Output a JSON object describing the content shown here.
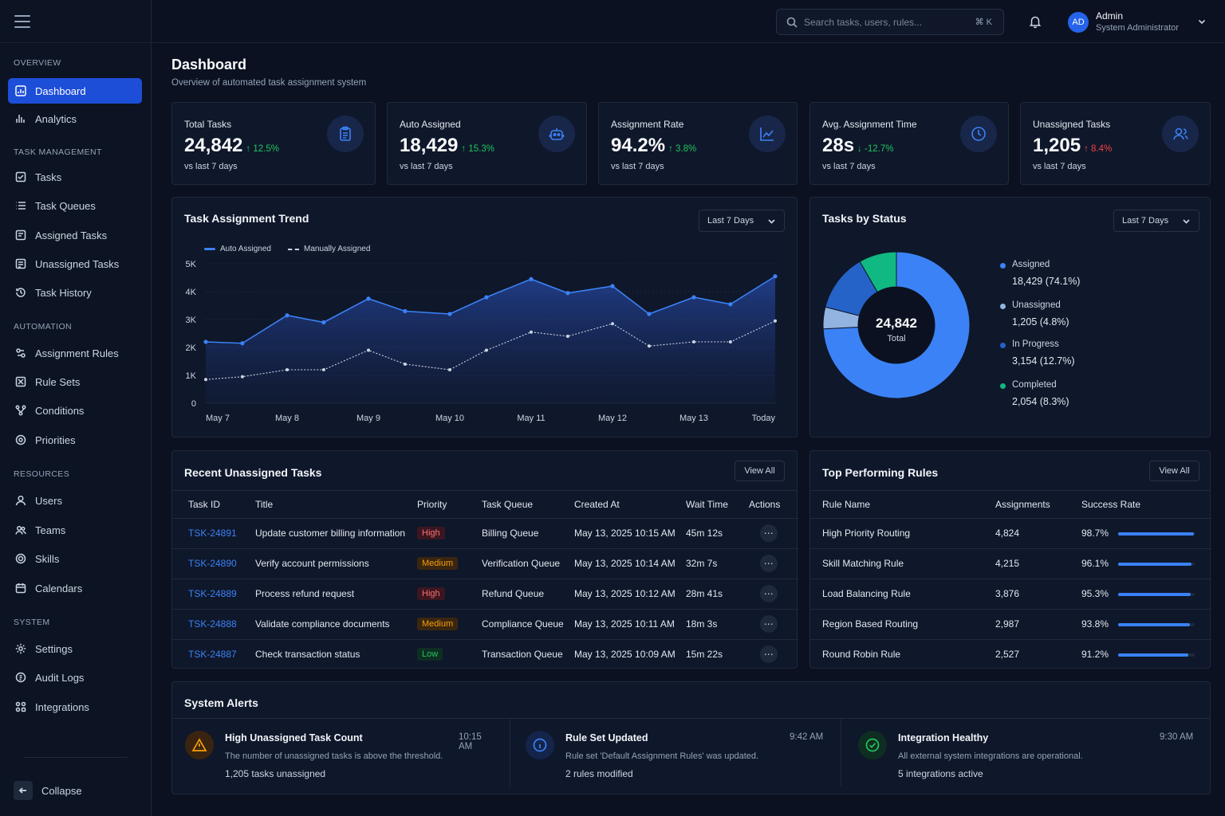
{
  "sidebar": {
    "sections": [
      "OVERVIEW",
      "TASK MANAGEMENT",
      "AUTOMATION",
      "RESOURCES",
      "SYSTEM"
    ],
    "items": [
      {
        "label": "Dashboard",
        "icon": "dashboard-icon"
      },
      {
        "label": "Analytics",
        "icon": "analytics-icon"
      },
      {
        "label": "Tasks",
        "icon": "tasks-icon"
      },
      {
        "label": "Task Queues",
        "icon": "queues-icon"
      },
      {
        "label": "Assigned Tasks",
        "icon": "assigned-icon"
      },
      {
        "label": "Unassigned Tasks",
        "icon": "unassigned-icon"
      },
      {
        "label": "Task History",
        "icon": "history-icon"
      },
      {
        "label": "Assignment Rules",
        "icon": "rules-icon"
      },
      {
        "label": "Rule Sets",
        "icon": "rulesets-icon"
      },
      {
        "label": "Conditions",
        "icon": "conditions-icon"
      },
      {
        "label": "Priorities",
        "icon": "priorities-icon"
      },
      {
        "label": "Users",
        "icon": "users-icon"
      },
      {
        "label": "Teams",
        "icon": "teams-icon"
      },
      {
        "label": "Skills",
        "icon": "skills-icon"
      },
      {
        "label": "Calendars",
        "icon": "calendar-icon"
      },
      {
        "label": "Settings",
        "icon": "gear-icon"
      },
      {
        "label": "Audit Logs",
        "icon": "audit-icon"
      },
      {
        "label": "Integrations",
        "icon": "integrations-icon"
      }
    ],
    "collapse_label": "Collapse"
  },
  "topbar": {
    "search_placeholder": "Search tasks, users, rules...",
    "search_shortcut": "⌘  K",
    "user": {
      "initials": "AD",
      "name": "Admin",
      "role": "System Administrator"
    }
  },
  "page": {
    "title": "Dashboard",
    "subtitle": "Overview of automated task assignment system"
  },
  "kpis": [
    {
      "label": "Total Tasks",
      "value": "24,842",
      "delta": "12.5%",
      "direction": "up",
      "sub": "vs last 7 days",
      "icon": "clipboard-icon"
    },
    {
      "label": "Auto Assigned",
      "value": "18,429",
      "delta": "15.3%",
      "direction": "up",
      "sub": "vs last 7 days",
      "icon": "robot-icon"
    },
    {
      "label": "Assignment Rate",
      "value": "94.2%",
      "delta": "3.8%",
      "direction": "up",
      "sub": "vs last 7 days",
      "icon": "trend-icon"
    },
    {
      "label": "Avg. Assignment Time",
      "value": "28s",
      "delta": "-12.7%",
      "direction": "down",
      "sub": "vs last 7 days",
      "icon": "clock-icon"
    },
    {
      "label": "Unassigned Tasks",
      "value": "1,205",
      "delta": "8.4%",
      "direction": "up-bad",
      "sub": "vs last 7 days",
      "icon": "user-icon"
    }
  ],
  "trend": {
    "title": "Task Assignment Trend",
    "range": "Last 7 Days",
    "legend": [
      "Auto Assigned",
      "Manually Assigned"
    ]
  },
  "status": {
    "title": "Tasks by Status",
    "range": "Last 7 Days",
    "total_value": "24,842",
    "total_label": "Total",
    "items": [
      {
        "label": "Assigned",
        "value": "18,429 (74.1%)",
        "color": "#3b82f6"
      },
      {
        "label": "Unassigned",
        "value": "1,205 (4.8%)",
        "color": "#93b4e0"
      },
      {
        "label": "In Progress",
        "value": "3,154 (12.7%)",
        "color": "#2563c9"
      },
      {
        "label": "Completed",
        "value": "2,054 (8.3%)",
        "color": "#10b981"
      }
    ]
  },
  "chart_data": [
    {
      "type": "area",
      "title": "Task Assignment Trend",
      "categories": [
        "May 7",
        "May 8",
        "May 9",
        "May 10",
        "May 11",
        "May 12",
        "May 13",
        "Today"
      ],
      "x": [
        0,
        0.45,
        1,
        1.45,
        2,
        2.45,
        3,
        3.45,
        4,
        4.45,
        5,
        5.45,
        6,
        6.45,
        7
      ],
      "series": [
        {
          "name": "Auto Assigned",
          "values": [
            2200,
            2150,
            3150,
            2900,
            3750,
            3300,
            3200,
            3800,
            4450,
            3950,
            4200,
            3200,
            3800,
            3550,
            4550
          ],
          "color": "#3b82f6"
        },
        {
          "name": "Manually Assigned",
          "values": [
            850,
            950,
            1200,
            1200,
            1900,
            1400,
            1200,
            1900,
            2550,
            2400,
            2850,
            2050,
            2200,
            2200,
            2950
          ],
          "color": "#cbd5e1"
        }
      ],
      "yticks": [
        "0",
        "1K",
        "2K",
        "3K",
        "4K",
        "5K"
      ],
      "ylim": [
        0,
        5000
      ],
      "grid": true,
      "legend": "top-left"
    },
    {
      "type": "pie",
      "title": "Tasks by Status",
      "categories": [
        "Assigned",
        "Unassigned",
        "In Progress",
        "Completed"
      ],
      "values": [
        74.1,
        4.8,
        12.7,
        8.3
      ],
      "colors": [
        "#3b82f6",
        "#93b4e0",
        "#2563c9",
        "#10b981"
      ],
      "legend": "right"
    }
  ],
  "unassigned": {
    "title": "Recent Unassigned Tasks",
    "view_all": "View All",
    "columns": [
      "Task ID",
      "Title",
      "Priority",
      "Task Queue",
      "Created At",
      "Wait Time",
      "Actions"
    ],
    "rows": [
      {
        "id": "TSK-24891",
        "title": "Update customer billing information",
        "priority": "High",
        "queue": "Billing Queue",
        "created": "May 13, 2025 10:15 AM",
        "wait": "45m 12s"
      },
      {
        "id": "TSK-24890",
        "title": "Verify account permissions",
        "priority": "Medium",
        "queue": "Verification Queue",
        "created": "May 13, 2025 10:14 AM",
        "wait": "32m 7s"
      },
      {
        "id": "TSK-24889",
        "title": "Process refund request",
        "priority": "High",
        "queue": "Refund Queue",
        "created": "May 13, 2025 10:12 AM",
        "wait": "28m 41s"
      },
      {
        "id": "TSK-24888",
        "title": "Validate compliance documents",
        "priority": "Medium",
        "queue": "Compliance Queue",
        "created": "May 13, 2025 10:11 AM",
        "wait": "18m 3s"
      },
      {
        "id": "TSK-24887",
        "title": "Check transaction status",
        "priority": "Low",
        "queue": "Transaction Queue",
        "created": "May 13, 2025 10:09 AM",
        "wait": "15m 22s"
      }
    ]
  },
  "rules": {
    "title": "Top Performing Rules",
    "view_all": "View All",
    "columns": [
      "Rule Name",
      "Assignments",
      "Success Rate"
    ],
    "rows": [
      {
        "name": "High Priority Routing",
        "assignments": "4,824",
        "rate": "98.7%",
        "fill": 98.7
      },
      {
        "name": "Skill Matching Rule",
        "assignments": "4,215",
        "rate": "96.1%",
        "fill": 96.1
      },
      {
        "name": "Load Balancing Rule",
        "assignments": "3,876",
        "rate": "95.3%",
        "fill": 95.3
      },
      {
        "name": "Region Based Routing",
        "assignments": "2,987",
        "rate": "93.8%",
        "fill": 93.8
      },
      {
        "name": "Round Robin Rule",
        "assignments": "2,527",
        "rate": "91.2%",
        "fill": 91.2
      }
    ]
  },
  "alerts": {
    "title": "System Alerts",
    "items": [
      {
        "title": "High Unassigned Task Count",
        "desc": "The number of unassigned tasks is above the threshold.",
        "meta": "1,205 tasks unassigned",
        "time": "10:15 AM",
        "icon": "warning-icon",
        "color": "#f59e0b"
      },
      {
        "title": "Rule Set Updated",
        "desc": "Rule set 'Default Assignment Rules' was updated.",
        "meta": "2 rules modified",
        "time": "9:42 AM",
        "icon": "info-icon",
        "color": "#3b82f6"
      },
      {
        "title": "Integration Healthy",
        "desc": "All external system integrations are operational.",
        "meta": "5 integrations active",
        "time": "9:30 AM",
        "icon": "check-circle-icon",
        "color": "#22c55e"
      }
    ]
  }
}
